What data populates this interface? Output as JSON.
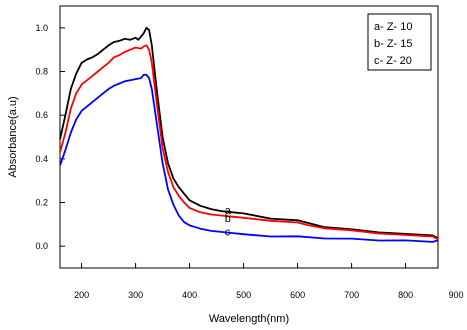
{
  "chart_data": {
    "type": "line",
    "title": "",
    "xlabel": "Wavelength(nm)",
    "ylabel": "Absorbance(a.u)",
    "xlim": [
      160,
      860
    ],
    "ylim": [
      -0.1,
      1.1
    ],
    "x_ticks": [
      "200",
      "300",
      "400",
      "500",
      "600",
      "700",
      "800",
      "900"
    ],
    "y_ticks": [
      "0.0",
      "0.2",
      "0.4",
      "0.6",
      "0.8",
      "1.0"
    ],
    "grid": false,
    "legend": {
      "placement": "top-right",
      "entries": [
        "a- Z- 10",
        "b- Z- 15",
        "c- Z- 20"
      ]
    },
    "series": [
      {
        "label": "a",
        "color": "#000000",
        "points": [
          [
            160,
            0.49
          ],
          [
            170,
            0.6
          ],
          [
            180,
            0.72
          ],
          [
            190,
            0.79
          ],
          [
            200,
            0.84
          ],
          [
            210,
            0.855
          ],
          [
            220,
            0.865
          ],
          [
            230,
            0.88
          ],
          [
            240,
            0.9
          ],
          [
            250,
            0.92
          ],
          [
            260,
            0.935
          ],
          [
            270,
            0.94
          ],
          [
            280,
            0.95
          ],
          [
            290,
            0.945
          ],
          [
            300,
            0.955
          ],
          [
            305,
            0.945
          ],
          [
            310,
            0.96
          ],
          [
            315,
            0.975
          ],
          [
            320,
            1.0
          ],
          [
            325,
            0.99
          ],
          [
            330,
            0.92
          ],
          [
            340,
            0.7
          ],
          [
            350,
            0.5
          ],
          [
            360,
            0.38
          ],
          [
            370,
            0.31
          ],
          [
            380,
            0.27
          ],
          [
            390,
            0.24
          ],
          [
            400,
            0.21
          ],
          [
            420,
            0.185
          ],
          [
            440,
            0.17
          ],
          [
            460,
            0.16
          ],
          [
            480,
            0.155
          ],
          [
            500,
            0.15
          ],
          [
            550,
            0.13
          ],
          [
            600,
            0.115
          ],
          [
            620,
            0.11
          ],
          [
            650,
            0.09
          ],
          [
            700,
            0.075
          ],
          [
            750,
            0.065
          ],
          [
            800,
            0.055
          ],
          [
            850,
            0.05
          ],
          [
            860,
            0.04
          ]
        ]
      },
      {
        "label": "b",
        "color": "#ff0000",
        "points": [
          [
            160,
            0.43
          ],
          [
            170,
            0.52
          ],
          [
            180,
            0.63
          ],
          [
            190,
            0.7
          ],
          [
            200,
            0.74
          ],
          [
            210,
            0.76
          ],
          [
            220,
            0.78
          ],
          [
            230,
            0.8
          ],
          [
            240,
            0.82
          ],
          [
            250,
            0.84
          ],
          [
            260,
            0.865
          ],
          [
            270,
            0.875
          ],
          [
            280,
            0.89
          ],
          [
            290,
            0.9
          ],
          [
            300,
            0.91
          ],
          [
            310,
            0.905
          ],
          [
            315,
            0.915
          ],
          [
            320,
            0.92
          ],
          [
            325,
            0.9
          ],
          [
            330,
            0.84
          ],
          [
            340,
            0.64
          ],
          [
            350,
            0.45
          ],
          [
            360,
            0.34
          ],
          [
            370,
            0.27
          ],
          [
            380,
            0.23
          ],
          [
            390,
            0.2
          ],
          [
            400,
            0.175
          ],
          [
            420,
            0.155
          ],
          [
            440,
            0.145
          ],
          [
            460,
            0.14
          ],
          [
            480,
            0.135
          ],
          [
            500,
            0.13
          ],
          [
            550,
            0.12
          ],
          [
            600,
            0.105
          ],
          [
            620,
            0.1
          ],
          [
            650,
            0.085
          ],
          [
            700,
            0.07
          ],
          [
            750,
            0.06
          ],
          [
            800,
            0.05
          ],
          [
            850,
            0.045
          ],
          [
            860,
            0.035
          ]
        ]
      },
      {
        "label": "c",
        "color": "#0000ff",
        "points": [
          [
            160,
            0.37
          ],
          [
            170,
            0.44
          ],
          [
            180,
            0.52
          ],
          [
            190,
            0.58
          ],
          [
            200,
            0.62
          ],
          [
            210,
            0.64
          ],
          [
            220,
            0.66
          ],
          [
            230,
            0.68
          ],
          [
            240,
            0.7
          ],
          [
            250,
            0.72
          ],
          [
            260,
            0.735
          ],
          [
            270,
            0.745
          ],
          [
            280,
            0.755
          ],
          [
            290,
            0.76
          ],
          [
            300,
            0.765
          ],
          [
            310,
            0.77
          ],
          [
            315,
            0.785
          ],
          [
            320,
            0.785
          ],
          [
            325,
            0.77
          ],
          [
            330,
            0.72
          ],
          [
            340,
            0.55
          ],
          [
            350,
            0.38
          ],
          [
            360,
            0.26
          ],
          [
            370,
            0.19
          ],
          [
            380,
            0.14
          ],
          [
            390,
            0.11
          ],
          [
            400,
            0.095
          ],
          [
            420,
            0.08
          ],
          [
            440,
            0.07
          ],
          [
            460,
            0.065
          ],
          [
            480,
            0.06
          ],
          [
            500,
            0.055
          ],
          [
            550,
            0.048
          ],
          [
            600,
            0.042
          ],
          [
            650,
            0.038
          ],
          [
            700,
            0.032
          ],
          [
            750,
            0.028
          ],
          [
            800,
            0.025
          ],
          [
            850,
            0.02
          ],
          [
            860,
            0.03
          ]
        ]
      }
    ]
  }
}
